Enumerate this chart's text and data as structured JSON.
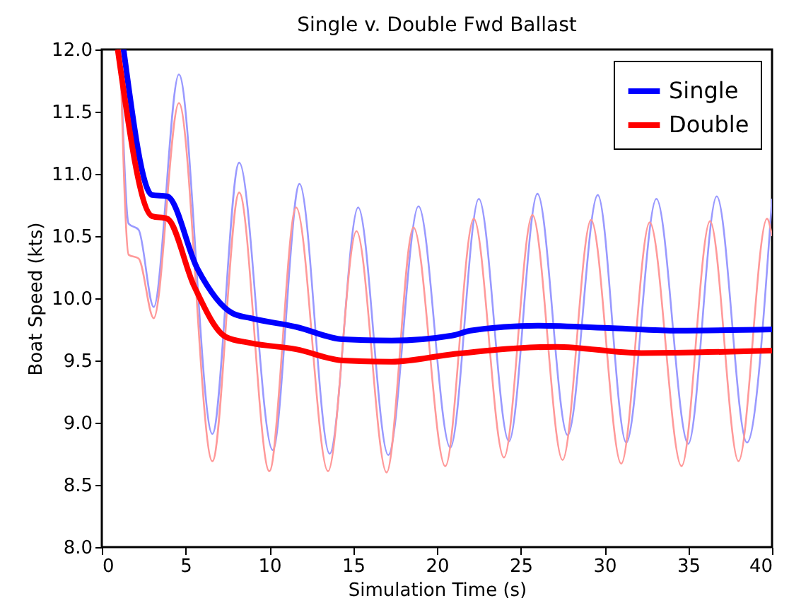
{
  "chart_data": {
    "type": "line",
    "title": "Single v. Double Fwd Ballast",
    "xlabel": "Simulation Time (s)",
    "ylabel": "Boat Speed (kts)",
    "xlim": [
      0,
      40
    ],
    "xticks": [
      0,
      5,
      10,
      15,
      20,
      25,
      30,
      35,
      40
    ],
    "ylim": [
      8,
      12
    ],
    "yticks": [
      {
        "value": 8,
        "label": "8.0"
      },
      8.5,
      {
        "value": 9,
        "label": "9.0"
      },
      9.5,
      {
        "value": 10,
        "label": "10.0"
      },
      10.5,
      {
        "value": 11,
        "label": "11.0"
      },
      11.5,
      {
        "value": 12,
        "label": "12.0"
      }
    ],
    "grid": false,
    "legend": "top right",
    "line_style": "solid",
    "marker": "none",
    "series": [
      {
        "color": "#9999ff",
        "x": [
          1.1,
          1.6,
          2.2,
          3.1,
          4.6,
          6.6,
          8.2,
          10.2,
          11.8,
          13.6,
          15.3,
          17.1,
          18.9,
          20.8,
          22.5,
          24.3,
          26,
          27.8,
          29.6,
          31.3,
          33.1,
          35,
          36.7,
          38.5,
          40
        ],
        "values": [
          12,
          10.6,
          10.55,
          9.93,
          11.8,
          8.91,
          11.09,
          8.78,
          10.92,
          8.75,
          10.73,
          8.74,
          10.74,
          8.8,
          10.8,
          8.85,
          10.84,
          8.9,
          10.83,
          8.84,
          10.8,
          8.83,
          10.82,
          8.84,
          10.8
        ]
      },
      {
        "color": "#ff9999",
        "x": [
          1.1,
          1.6,
          2.2,
          3.1,
          4.6,
          6.6,
          8.2,
          10,
          11.6,
          13.5,
          15.2,
          17,
          18.6,
          20.5,
          22.2,
          24,
          25.7,
          27.5,
          29.2,
          31,
          32.7,
          34.6,
          36.3,
          38,
          39.7,
          40
        ],
        "values": [
          12,
          10.35,
          10.32,
          9.84,
          11.57,
          8.69,
          10.85,
          8.61,
          10.73,
          8.61,
          10.54,
          8.6,
          10.57,
          8.65,
          10.64,
          8.72,
          10.67,
          8.7,
          10.63,
          8.67,
          10.61,
          8.65,
          10.62,
          8.69,
          10.64,
          10.5
        ]
      },
      {
        "name": "Single",
        "color": "#0000ff",
        "x": [
          1.3,
          3.0,
          3.9,
          5.7,
          7.8,
          8.9,
          11.6,
          14.4,
          17.3,
          20.9,
          22,
          26,
          30.5,
          34.4,
          40
        ],
        "values": [
          12,
          10.83,
          10.82,
          10.24,
          9.88,
          9.84,
          9.77,
          9.67,
          9.66,
          9.7,
          9.74,
          9.78,
          9.76,
          9.74,
          9.75
        ]
      },
      {
        "name": "Double",
        "color": "#ff0000",
        "x": [
          0.95,
          3.0,
          3.9,
          5.5,
          7.4,
          8.9,
          11.6,
          14.4,
          17.3,
          20.9,
          24.9,
          27.1,
          32.2,
          40
        ],
        "values": [
          12,
          10.66,
          10.64,
          10.1,
          9.69,
          9.64,
          9.59,
          9.5,
          9.49,
          9.55,
          9.6,
          9.61,
          9.56,
          9.58
        ]
      }
    ]
  }
}
